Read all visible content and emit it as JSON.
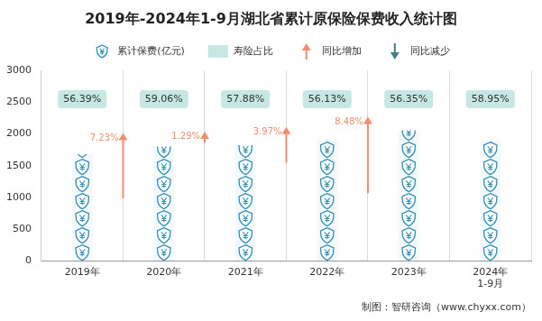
{
  "chart_data": {
    "type": "bar",
    "title": "2019年-2024年1-9月湖北省累计原保险保费收入统计图",
    "categories": [
      "2019年",
      "2020年",
      "2021年",
      "2022年",
      "2023年",
      [
        "2024年",
        "1-9月"
      ]
    ],
    "series": [
      {
        "name": "累计保费(亿元)",
        "type": "bar",
        "color": "#2e8fb8",
        "values": [
          1680,
          1801,
          1825,
          1897,
          2058,
          1895
        ]
      },
      {
        "name": "寿险占比",
        "type": "label_box",
        "color": "#c6e7e4",
        "values": [
          56.39,
          59.06,
          57.88,
          56.13,
          56.35,
          58.95
        ],
        "value_labels": [
          "56.39%",
          "59.06%",
          "57.88%",
          "56.13%",
          "56.35%",
          "58.95%"
        ]
      },
      {
        "name": "同比增加",
        "type": "arrow_up",
        "color": "#f08e6e",
        "values": [
          null,
          7.23,
          1.29,
          3.97,
          8.48,
          null
        ],
        "value_labels": [
          null,
          "7.23%",
          "1.29%",
          "3.97%",
          "8.48%",
          null
        ]
      },
      {
        "name": "同比减少",
        "type": "arrow_down",
        "color": "#3f808c",
        "values": [
          null,
          null,
          null,
          null,
          null,
          null
        ],
        "value_labels": [
          null,
          null,
          null,
          null,
          null,
          null
        ]
      }
    ],
    "ylim": [
      0,
      3000
    ],
    "yticks": [
      0,
      500,
      1000,
      1500,
      2000,
      2500,
      3000
    ],
    "grid": true,
    "source": "制图：智研咨询（www.chyxx.com）"
  }
}
